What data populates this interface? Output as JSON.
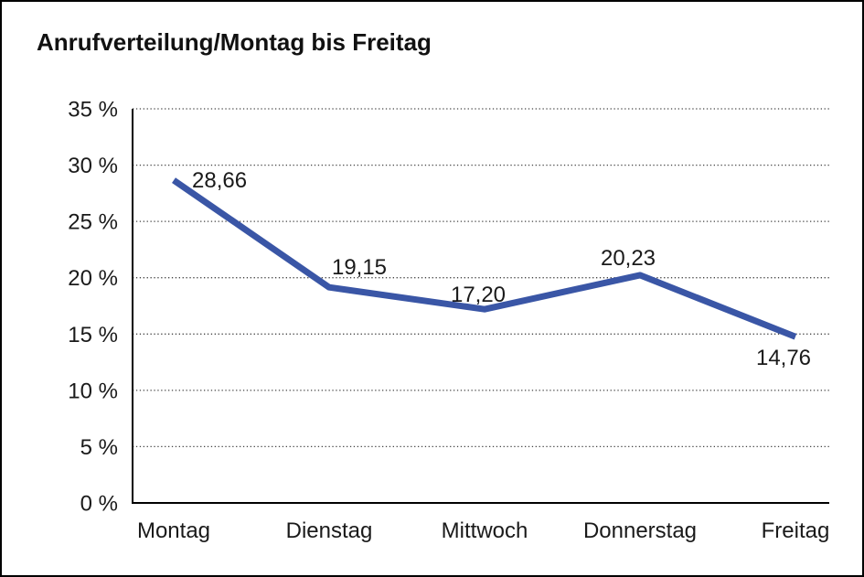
{
  "page": {
    "background": "#ffffff",
    "border_color": "#000000"
  },
  "header": {
    "title": "Anrufverteilung/Montag bis Freitag"
  },
  "chart_data": {
    "type": "line",
    "title": "Anrufverteilung/Montag bis Freitag",
    "categories": [
      "Montag",
      "Dienstag",
      "Mittwoch",
      "Donnerstag",
      "Freitag"
    ],
    "values": [
      28.66,
      19.15,
      17.2,
      20.23,
      14.76
    ],
    "point_labels": [
      "28,66",
      "19,15",
      "17,20",
      "20,23",
      "14,76"
    ],
    "xlabel": "",
    "ylabel": "",
    "ylim": [
      0,
      35
    ],
    "ytick_step": 5,
    "ytick_labels": [
      "0 %",
      "5 %",
      "10 %",
      "15 %",
      "20 %",
      "25 %",
      "30 %",
      "35 %"
    ],
    "grid": {
      "horizontal": true,
      "style": "dotted",
      "color": "#444444"
    },
    "legend": "none",
    "line_color": "#3A56A6",
    "line_width": 7,
    "axis_color": "#000000",
    "text_color": "#1a1a1a"
  }
}
